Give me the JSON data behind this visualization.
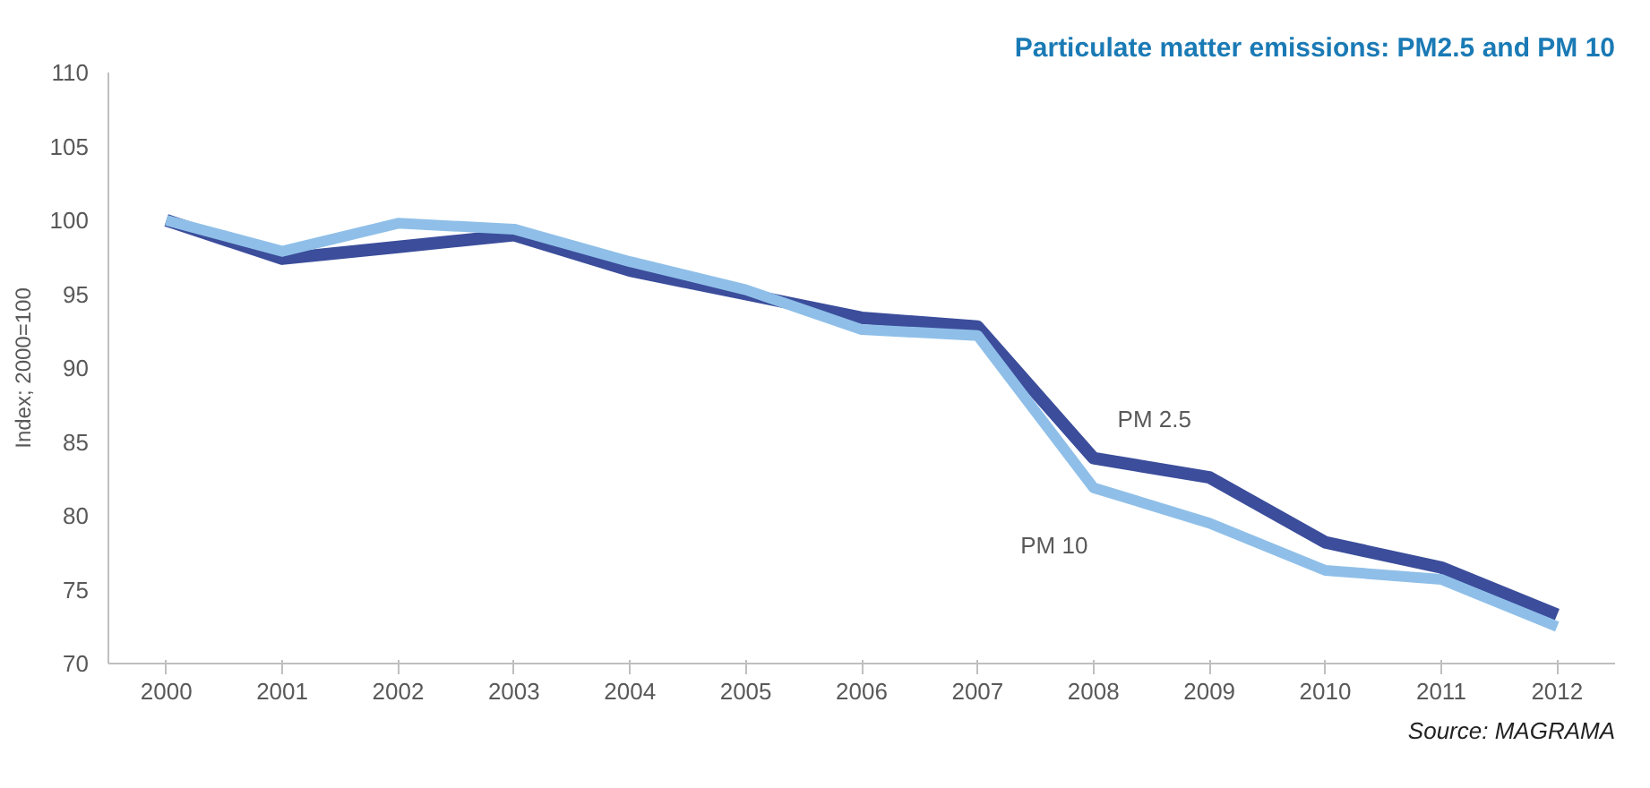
{
  "chart_data": {
    "type": "line",
    "title": "Particulate matter emissions: PM2.5 and PM 10",
    "ylabel": "Index; 2000=100",
    "categories": [
      "2000",
      "2001",
      "2002",
      "2003",
      "2004",
      "2005",
      "2006",
      "2007",
      "2008",
      "2009",
      "2010",
      "2011",
      "2012"
    ],
    "series": [
      {
        "name": "PM 2.5",
        "color": "#3b4d9b",
        "values": [
          100,
          97.4,
          98.2,
          99.0,
          96.6,
          95.0,
          93.4,
          92.8,
          83.9,
          82.6,
          78.2,
          76.5,
          73.3
        ]
      },
      {
        "name": "PM 10",
        "color": "#8fbfe8",
        "values": [
          100,
          97.9,
          99.8,
          99.4,
          97.2,
          95.3,
          92.6,
          92.2,
          81.9,
          79.5,
          76.3,
          75.7,
          72.5
        ]
      }
    ],
    "ylim": [
      70,
      110
    ],
    "yticks": [
      70,
      75,
      80,
      85,
      90,
      95,
      100,
      105,
      110
    ],
    "grid": false,
    "marker": "none",
    "line_style": "solid",
    "annotations": [
      "Source: MAGRAMA"
    ]
  }
}
